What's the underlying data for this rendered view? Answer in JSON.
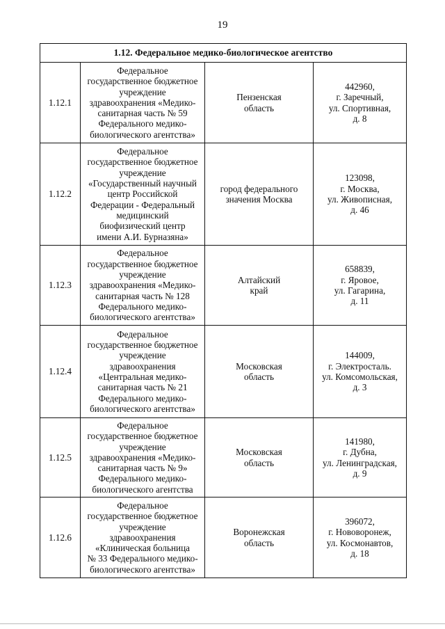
{
  "page_number": "19",
  "section_title": "1.12. Федеральное медико-биологическое агентство",
  "rows": [
    {
      "num": "1.12.1",
      "name": "Федеральное\nгосударственное бюджетное\nучреждение\nздравоохранения «Медико-\nсанитарная часть № 59\nФедерального медико-\nбиологического агентства»",
      "region": "Пензенская\nобласть",
      "address": "442960,\nг. Заречный,\nул. Спортивная,\nд. 8"
    },
    {
      "num": "1.12.2",
      "name": "Федеральное\nгосударственное бюджетное\nучреждение\n«Государственный научный\nцентр Российской\nФедерации - Федеральный\nмедицинский\nбиофизический центр\nимени А.И. Бурназяна»",
      "region": "город федерального\nзначения Москва",
      "address": "123098,\nг. Москва,\nул. Живописная,\nд. 46"
    },
    {
      "num": "1.12.3",
      "name": "Федеральное\nгосударственное бюджетное\nучреждение\nздравоохранения «Медико-\nсанитарная часть № 128\nФедерального медико-\nбиологического агентства»",
      "region": "Алтайский\nкрай",
      "address": "658839,\nг. Яровое,\nул. Гагарина,\nд. 11"
    },
    {
      "num": "1.12.4",
      "name": "Федеральное\nгосударственное бюджетное\nучреждение\nздравоохранения\n«Центральная медико-\nсанитарная часть № 21\nФедерального медико-\nбиологического агентства»",
      "region": "Московская\nобласть",
      "address": "144009,\nг. Электросталь.\nул. Комсомольская,\nд. 3"
    },
    {
      "num": "1.12.5",
      "name": "Федеральное\nгосударственное бюджетное\nучреждение\nздравоохранения «Медико-\nсанитарная часть № 9»\nФедерального медико-\nбиологического агентства",
      "region": "Московская\nобласть",
      "address": "141980,\nг. Дубна,\nул. Ленинградская,\nд. 9"
    },
    {
      "num": "1.12.6",
      "name": "Федеральное\nгосударственное бюджетное\nучреждение\nздравоохранения\n«Клиническая больница\n№ 33 Федерального медико-\nбиологического агентства»",
      "region": "Воронежская\nобласть",
      "address": "396072,\nг. Нововоронеж,\nул. Космонавтов,\nд. 18"
    }
  ]
}
